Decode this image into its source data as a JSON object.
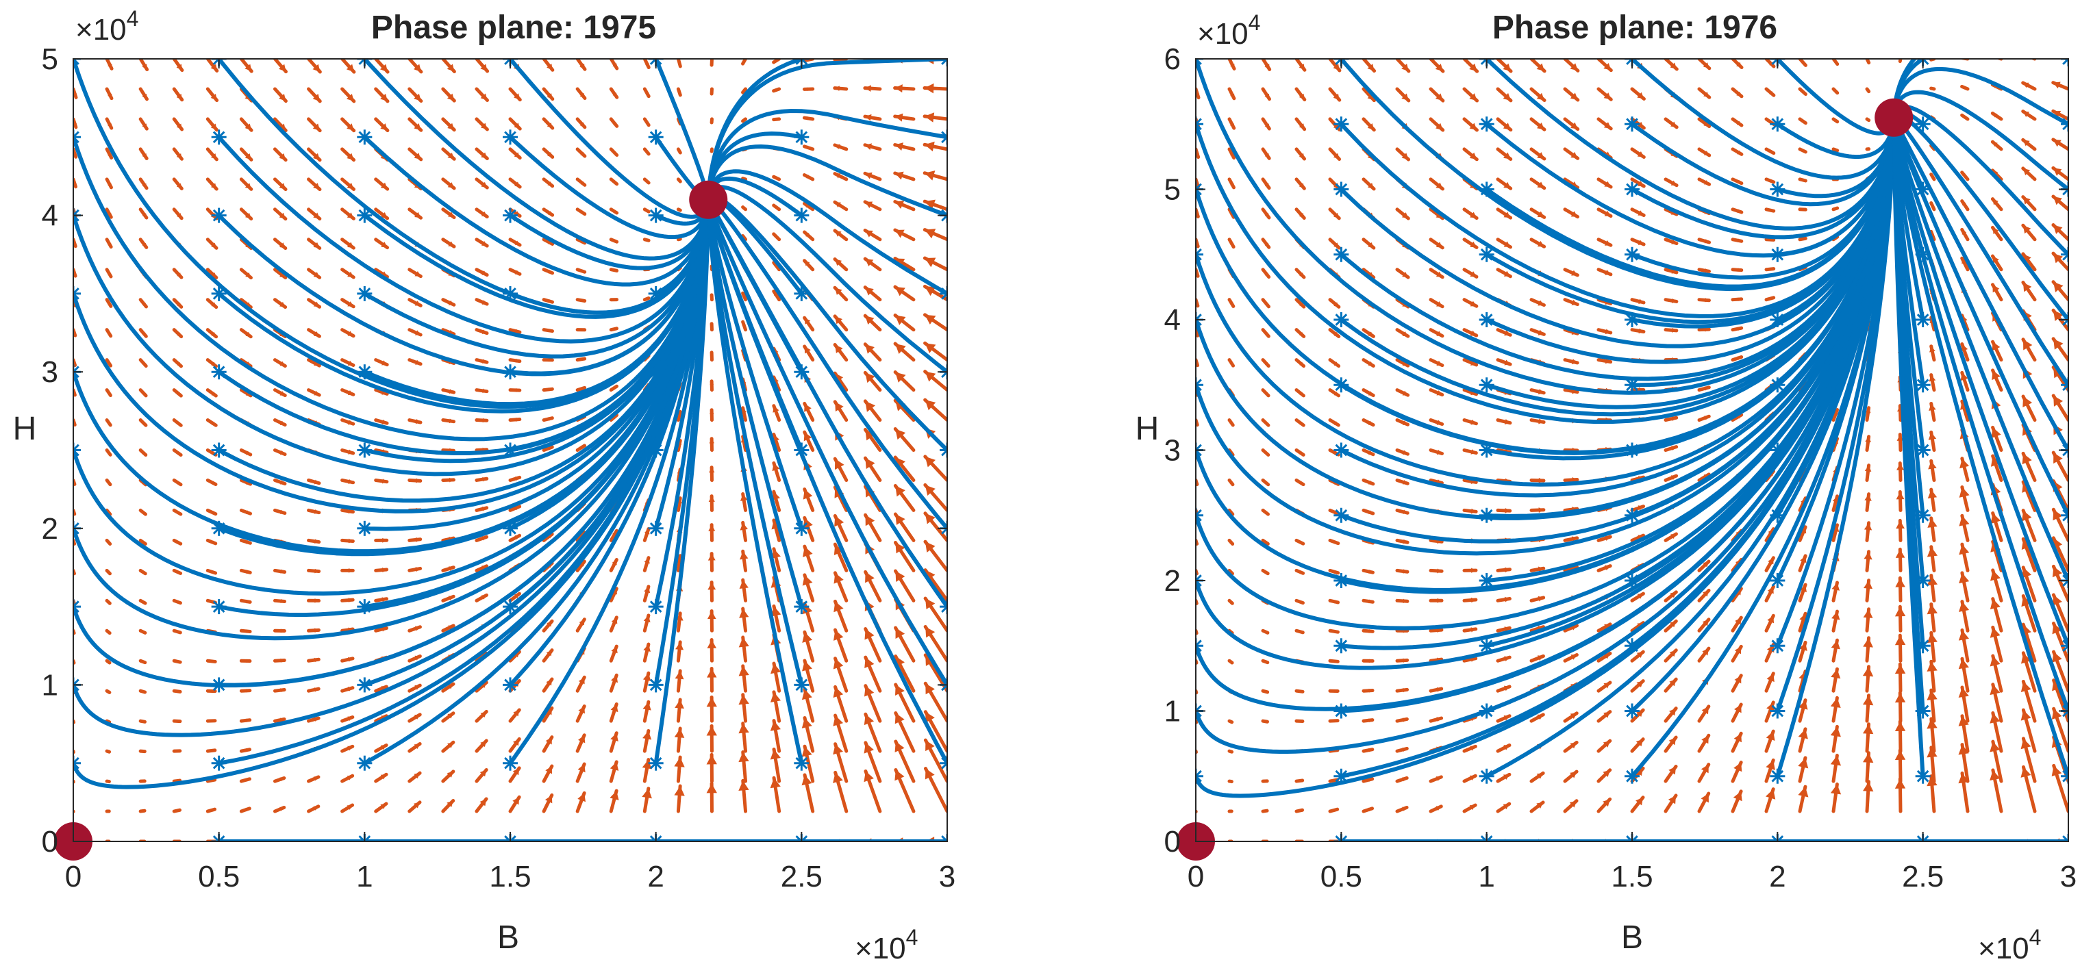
{
  "colors": {
    "trajectory": "#0072BD",
    "arrow": "#D95319",
    "equilibrium": "#A2142F",
    "axis": "#262626"
  },
  "chart_data": [
    {
      "type": "phase-plane",
      "title": "Phase plane: 1975",
      "xlabel": "B",
      "ylabel": "H",
      "xlim": [
        0,
        30000
      ],
      "ylim": [
        0,
        50000
      ],
      "x_ticks": [
        0,
        5000,
        10000,
        15000,
        20000,
        25000,
        30000
      ],
      "x_tick_labels": [
        "0",
        "0.5",
        "1",
        "1.5",
        "2",
        "2.5",
        "3"
      ],
      "y_ticks": [
        0,
        10000,
        20000,
        30000,
        40000,
        50000
      ],
      "y_tick_labels": [
        "0",
        "1",
        "2",
        "3",
        "4",
        "5"
      ],
      "x_exponent": "×10",
      "y_exponent": "×10",
      "exponent_power": "4",
      "equilibria": [
        [
          0,
          0
        ],
        [
          21800,
          41000
        ]
      ],
      "grid_step": [
        5000,
        5000
      ],
      "trajectory_starts": "all grid points with B in {0,5000,...,30000} and H in {0,5000,...,50000}"
    },
    {
      "type": "phase-plane",
      "title": "Phase plane: 1976",
      "xlabel": "B",
      "ylabel": "H",
      "xlim": [
        0,
        30000
      ],
      "ylim": [
        0,
        60000
      ],
      "x_ticks": [
        0,
        5000,
        10000,
        15000,
        20000,
        25000,
        30000
      ],
      "x_tick_labels": [
        "0",
        "0.5",
        "1",
        "1.5",
        "2",
        "2.5",
        "3"
      ],
      "y_ticks": [
        0,
        10000,
        20000,
        30000,
        40000,
        50000,
        60000
      ],
      "y_tick_labels": [
        "0",
        "1",
        "2",
        "3",
        "4",
        "5",
        "6"
      ],
      "x_exponent": "×10",
      "y_exponent": "×10",
      "exponent_power": "4",
      "equilibria": [
        [
          0,
          0
        ],
        [
          24000,
          55500
        ]
      ],
      "grid_step": [
        5000,
        5000
      ],
      "trajectory_starts": "all grid points with B in {0,5000,...,30000} and H in {0,5000,...,60000}"
    }
  ]
}
